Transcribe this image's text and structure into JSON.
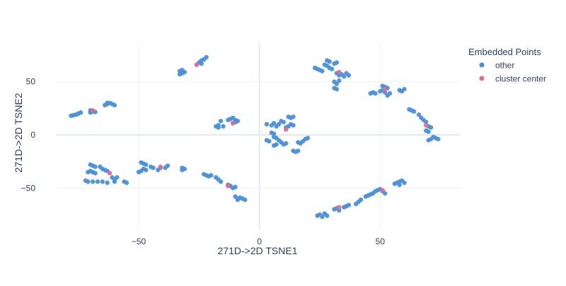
{
  "chart_data": {
    "type": "scatter",
    "title": "",
    "xlabel": "271D->2D TSNE1",
    "ylabel": "271D->2D TSNE2",
    "xlim": [
      -84,
      83
    ],
    "ylim": [
      -89,
      87
    ],
    "x_ticks": [
      -50,
      0,
      50
    ],
    "x_tick_labels": [
      "−50",
      "0",
      "50"
    ],
    "y_ticks": [
      -50,
      0,
      50
    ],
    "y_tick_labels": [
      "−50",
      "0",
      "50"
    ],
    "grid": true,
    "legend": {
      "title": "Embedded Points",
      "position": "right"
    },
    "series": [
      {
        "name": "other",
        "color": "#4a90d9",
        "points": [
          [
            -78,
            18
          ],
          [
            -77,
            18.5
          ],
          [
            -76,
            19
          ],
          [
            -75,
            20
          ],
          [
            -74,
            21
          ],
          [
            -70,
            21
          ],
          [
            -69,
            22
          ],
          [
            -68,
            21.5
          ],
          [
            -70,
            23
          ],
          [
            -64,
            28
          ],
          [
            -63,
            29
          ],
          [
            -62,
            30
          ],
          [
            -61,
            29
          ],
          [
            -63,
            30
          ],
          [
            -60,
            28
          ],
          [
            -33,
            60
          ],
          [
            -32,
            58
          ],
          [
            -33,
            57
          ],
          [
            -31,
            59
          ],
          [
            -32,
            61
          ],
          [
            -25,
            68
          ],
          [
            -24,
            70
          ],
          [
            -23,
            71
          ],
          [
            -22,
            73
          ],
          [
            -26,
            66
          ],
          [
            -24,
            67
          ],
          [
            -16,
            13
          ],
          [
            -17,
            9
          ],
          [
            -15,
            8
          ],
          [
            -17,
            7
          ],
          [
            -18,
            8
          ],
          [
            -12,
            15
          ],
          [
            -11,
            16
          ],
          [
            -10,
            14
          ],
          [
            -9,
            13
          ],
          [
            -11,
            11
          ],
          [
            -10,
            12
          ],
          [
            -13,
            14
          ],
          [
            -70,
            -28
          ],
          [
            -69,
            -29
          ],
          [
            -68,
            -30
          ],
          [
            -70,
            -34
          ],
          [
            -69,
            -35
          ],
          [
            -71,
            -35
          ],
          [
            -68,
            -36
          ],
          [
            -66,
            -30
          ],
          [
            -65,
            -32
          ],
          [
            -64,
            -33
          ],
          [
            -63,
            -34
          ],
          [
            -61,
            -40
          ],
          [
            -60,
            -42
          ],
          [
            -59,
            -40
          ],
          [
            -60,
            -44
          ],
          [
            -72,
            -43
          ],
          [
            -71,
            -44
          ],
          [
            -69,
            -44
          ],
          [
            -67,
            -44
          ],
          [
            -65,
            -44
          ],
          [
            -63,
            -45
          ],
          [
            -56,
            -44
          ],
          [
            -55,
            -45
          ],
          [
            -50,
            -35
          ],
          [
            -49,
            -34
          ],
          [
            -48,
            -32
          ],
          [
            -47,
            -33
          ],
          [
            -49,
            -26
          ],
          [
            -48,
            -27
          ],
          [
            -47,
            -28
          ],
          [
            -45,
            -30
          ],
          [
            -44,
            -31
          ],
          [
            -42,
            -33
          ],
          [
            -41,
            -31
          ],
          [
            -38,
            -29
          ],
          [
            -39,
            -31
          ],
          [
            -32,
            -31
          ],
          [
            -31,
            -32
          ],
          [
            -32,
            -33
          ],
          [
            -23,
            -37
          ],
          [
            -22,
            -38
          ],
          [
            -21,
            -39
          ],
          [
            -20,
            -38
          ],
          [
            -18,
            -40
          ],
          [
            -17,
            -42
          ],
          [
            -16,
            -44
          ],
          [
            -13,
            -47
          ],
          [
            -12,
            -48
          ],
          [
            -11,
            -50
          ],
          [
            -10,
            -49
          ],
          [
            -10,
            -58
          ],
          [
            -9,
            -60
          ],
          [
            -8,
            -59
          ],
          [
            -7,
            -60
          ],
          [
            -6,
            -61
          ],
          [
            -9,
            -61
          ],
          [
            3,
            10
          ],
          [
            5,
            9
          ],
          [
            6,
            11
          ],
          [
            7,
            8
          ],
          [
            8,
            10
          ],
          [
            9,
            13
          ],
          [
            10,
            12
          ],
          [
            11,
            7
          ],
          [
            12,
            8
          ],
          [
            13,
            10
          ],
          [
            14,
            9
          ],
          [
            12,
            17
          ],
          [
            13,
            16
          ],
          [
            14,
            17
          ],
          [
            5,
            2
          ],
          [
            6,
            1
          ],
          [
            6,
            -2
          ],
          [
            7,
            -3
          ],
          [
            8,
            -5
          ],
          [
            9,
            -7
          ],
          [
            10,
            -9
          ],
          [
            11,
            -8
          ],
          [
            3,
            -5
          ],
          [
            4,
            -6
          ],
          [
            6,
            -10
          ],
          [
            7,
            -9
          ],
          [
            14,
            -15
          ],
          [
            15,
            -16
          ],
          [
            16,
            -15
          ],
          [
            16,
            -7
          ],
          [
            17,
            -8
          ],
          [
            18,
            -6
          ],
          [
            19,
            -4
          ],
          [
            20,
            -3
          ],
          [
            23,
            63
          ],
          [
            24,
            62
          ],
          [
            25,
            61
          ],
          [
            26,
            60
          ],
          [
            27,
            66
          ],
          [
            28,
            65
          ],
          [
            29,
            63
          ],
          [
            30,
            62
          ],
          [
            28,
            70
          ],
          [
            29,
            69
          ],
          [
            31,
            67
          ],
          [
            32,
            68
          ],
          [
            32,
            58
          ],
          [
            33,
            56
          ],
          [
            34,
            57
          ],
          [
            35,
            55
          ],
          [
            36,
            58
          ],
          [
            37,
            56
          ],
          [
            31,
            50
          ],
          [
            32,
            48
          ],
          [
            31,
            44
          ],
          [
            32,
            43
          ],
          [
            33,
            51
          ],
          [
            46,
            39
          ],
          [
            47,
            40
          ],
          [
            48,
            39
          ],
          [
            50,
            41
          ],
          [
            51,
            42
          ],
          [
            52,
            40
          ],
          [
            53,
            37
          ],
          [
            54,
            39
          ],
          [
            51,
            46
          ],
          [
            52,
            45
          ],
          [
            53,
            44
          ],
          [
            58,
            42
          ],
          [
            59,
            41
          ],
          [
            60,
            43
          ],
          [
            62,
            24
          ],
          [
            63,
            23
          ],
          [
            64,
            22
          ],
          [
            66,
            19
          ],
          [
            67,
            16
          ],
          [
            68,
            14
          ],
          [
            69,
            12
          ],
          [
            70,
            8
          ],
          [
            71,
            7
          ],
          [
            69,
            4
          ],
          [
            70,
            3
          ],
          [
            72,
            -2
          ],
          [
            73,
            -3
          ],
          [
            71,
            -4
          ],
          [
            70,
            -5
          ],
          [
            74,
            -4
          ],
          [
            24,
            -76
          ],
          [
            25,
            -75
          ],
          [
            26,
            -77
          ],
          [
            27,
            -74
          ],
          [
            28,
            -76
          ],
          [
            31,
            -70
          ],
          [
            32,
            -69
          ],
          [
            33,
            -71
          ],
          [
            35,
            -68
          ],
          [
            36,
            -67
          ],
          [
            37,
            -66
          ],
          [
            40,
            -65
          ],
          [
            41,
            -63
          ],
          [
            42,
            -61
          ],
          [
            44,
            -58
          ],
          [
            45,
            -57
          ],
          [
            46,
            -56
          ],
          [
            47,
            -55
          ],
          [
            48,
            -53
          ],
          [
            49,
            -52
          ],
          [
            50,
            -51
          ],
          [
            51,
            -53
          ],
          [
            52,
            -55
          ],
          [
            56,
            -46
          ],
          [
            57,
            -45
          ],
          [
            58,
            -44
          ],
          [
            59,
            -43
          ],
          [
            60,
            -45
          ],
          [
            58,
            -47
          ]
        ]
      },
      {
        "name": "cluster center",
        "color": "#e26b94",
        "points": [
          [
            -69,
            23
          ],
          [
            -62,
            -36
          ],
          [
            -41,
            -30
          ],
          [
            -26,
            66
          ],
          [
            -13,
            -48
          ],
          [
            -11,
            11
          ],
          [
            11,
            5
          ],
          [
            33,
            59
          ],
          [
            52,
            43
          ],
          [
            69,
            9
          ],
          [
            33,
            -68
          ],
          [
            51,
            -52
          ]
        ]
      }
    ]
  }
}
